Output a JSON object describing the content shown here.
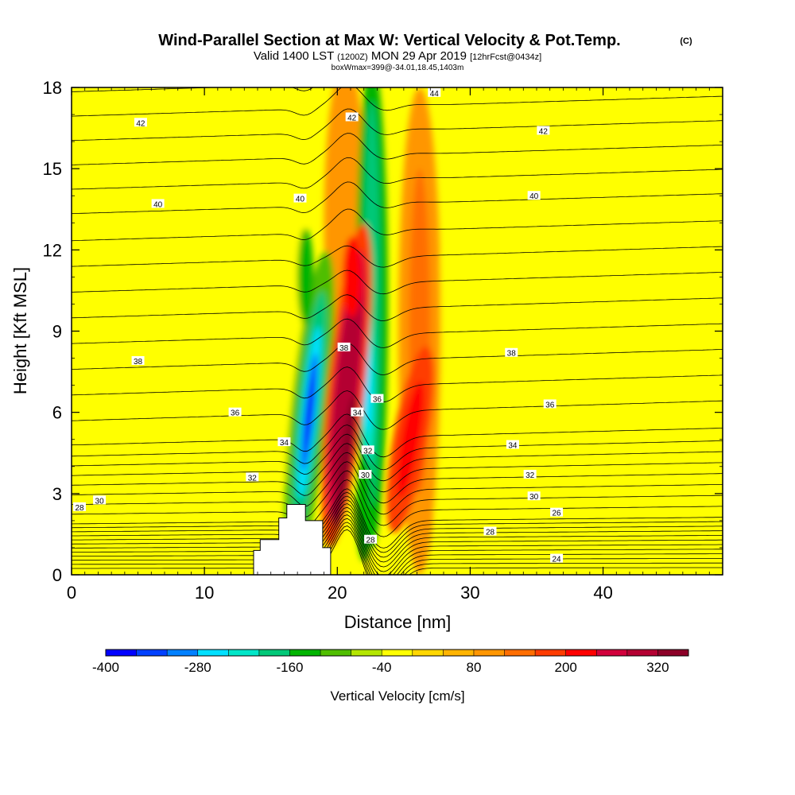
{
  "chart_data": {
    "type": "heatmap",
    "title": "Wind-Parallel Section at Max W: Vertical Velocity & Pot.Temp.",
    "title_mark": "(C)",
    "subtitle_valid": "Valid 1400 LST",
    "subtitle_z": "(1200Z)",
    "subtitle_date": "MON 29 Apr 2019",
    "subtitle_fcst": "[12hrFcst@0434z]",
    "subtitle_box": "boxWmax=399@-34.01,18.45,1403m",
    "xlabel": "Distance [nm]",
    "ylabel": "Height [Kft MSL]",
    "xlim": [
      0,
      49
    ],
    "ylim": [
      0,
      18
    ],
    "x_ticks": [
      0,
      10,
      20,
      30,
      40
    ],
    "y_ticks": [
      0,
      3,
      6,
      9,
      12,
      15,
      18
    ],
    "colorbar": {
      "label": "Vertical Velocity [cm/s]",
      "min": -400,
      "max": 360,
      "step": 40,
      "tick_labels": [
        "-400",
        "-280",
        "-160",
        "-40",
        "80",
        "200",
        "320"
      ],
      "tick_values": [
        -400,
        -280,
        -160,
        -40,
        80,
        200,
        320
      ],
      "colors": [
        "#0000ff",
        "#0040ff",
        "#0080ff",
        "#00e0ff",
        "#00e6c8",
        "#00c878",
        "#00b400",
        "#50be00",
        "#b4e600",
        "#ffff00",
        "#ffd700",
        "#ffb400",
        "#ff9600",
        "#ff6e00",
        "#ff3c00",
        "#ff0000",
        "#d2003c",
        "#b40032",
        "#8c0028"
      ]
    },
    "vertical_velocity_features": [
      {
        "type": "updraft",
        "x": 21,
        "height": 5.5,
        "peak": 330
      },
      {
        "type": "downdraft",
        "x": 18.2,
        "height": 3.5,
        "peak": -400
      },
      {
        "type": "downdraft",
        "x": 22.6,
        "height": 8,
        "peak": -260
      },
      {
        "type": "updraft",
        "x": 25.5,
        "height": 6,
        "peak": 120
      }
    ],
    "theta_contours": {
      "levels": [
        24,
        26,
        28,
        30,
        32,
        34,
        36,
        38,
        40,
        42,
        44
      ],
      "labels": [
        {
          "text": "28",
          "x": 0.6,
          "y": 2.5
        },
        {
          "text": "30",
          "x": 2.1,
          "y": 2.75
        },
        {
          "text": "32",
          "x": 13.6,
          "y": 3.6
        },
        {
          "text": "34",
          "x": 16,
          "y": 4.9
        },
        {
          "text": "36",
          "x": 12.3,
          "y": 6.0
        },
        {
          "text": "38",
          "x": 5,
          "y": 7.9
        },
        {
          "text": "40",
          "x": 6.5,
          "y": 13.7
        },
        {
          "text": "40",
          "x": 17.2,
          "y": 13.9
        },
        {
          "text": "42",
          "x": 5.2,
          "y": 16.7
        },
        {
          "text": "42",
          "x": 21.1,
          "y": 16.9
        },
        {
          "text": "44",
          "x": 27.3,
          "y": 17.8
        },
        {
          "text": "42",
          "x": 35.5,
          "y": 16.4
        },
        {
          "text": "40",
          "x": 34.8,
          "y": 14.0
        },
        {
          "text": "38",
          "x": 33.1,
          "y": 8.2
        },
        {
          "text": "36",
          "x": 36,
          "y": 6.3
        },
        {
          "text": "34",
          "x": 33.2,
          "y": 4.8
        },
        {
          "text": "32",
          "x": 34.5,
          "y": 3.7
        },
        {
          "text": "30",
          "x": 34.8,
          "y": 2.9
        },
        {
          "text": "28",
          "x": 31.5,
          "y": 1.6
        },
        {
          "text": "26",
          "x": 36.5,
          "y": 2.3
        },
        {
          "text": "24",
          "x": 36.5,
          "y": 0.6
        },
        {
          "text": "38",
          "x": 20.5,
          "y": 8.4
        },
        {
          "text": "36",
          "x": 23,
          "y": 6.5
        },
        {
          "text": "34",
          "x": 21.5,
          "y": 6.0
        },
        {
          "text": "32",
          "x": 22.3,
          "y": 4.6
        },
        {
          "text": "30",
          "x": 22.1,
          "y": 3.7
        },
        {
          "text": "28",
          "x": 22.5,
          "y": 1.3
        }
      ]
    },
    "terrain": [
      [
        13.7,
        0
      ],
      [
        13.7,
        0.9
      ],
      [
        14.2,
        0.9
      ],
      [
        14.2,
        1.3
      ],
      [
        15.6,
        1.3
      ],
      [
        15.6,
        2.1
      ],
      [
        16.2,
        2.1
      ],
      [
        16.2,
        2.6
      ],
      [
        17.6,
        2.6
      ],
      [
        17.6,
        2.0
      ],
      [
        18.9,
        2.0
      ],
      [
        18.9,
        1.0
      ],
      [
        19.5,
        1.0
      ],
      [
        19.5,
        0
      ]
    ]
  }
}
